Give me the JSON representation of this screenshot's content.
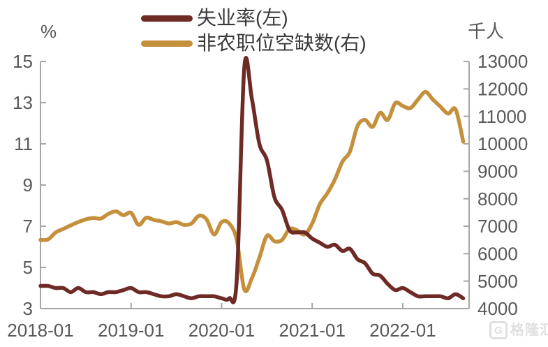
{
  "colors": {
    "background": "#FFFFFF",
    "axis_line": "#A6A6A6",
    "tick_label": "#595959",
    "legend_text": "#3A3A3A",
    "watermark": "#E0E0E0",
    "unemployment_line": "#6E2A25",
    "openings_line": "#C5903C"
  },
  "watermark": {
    "logo": "G",
    "text": "格隆汇"
  },
  "chart_data": {
    "type": "line",
    "title": "",
    "grid": false,
    "legend_position": "top-center",
    "x_start": "2018-01",
    "x_frequency": "monthly",
    "x_tick_labels": [
      "2018-01",
      "2019-01",
      "2020-01",
      "2021-01",
      "2022-01"
    ],
    "x_tick_indices": [
      0,
      12,
      24,
      36,
      48
    ],
    "left_axis": {
      "unit": "%",
      "min": 3,
      "max": 15,
      "step": 2,
      "tick_labels": [
        "3",
        "5",
        "7",
        "9",
        "11",
        "13",
        "15"
      ]
    },
    "right_axis": {
      "unit": "千人",
      "min": 4000,
      "max": 13000,
      "step": 1000,
      "tick_labels": [
        "4000",
        "5000",
        "6000",
        "7000",
        "8000",
        "9000",
        "10000",
        "11000",
        "12000",
        "13000"
      ]
    },
    "series": [
      {
        "name": "失业率(左)",
        "axis": "left",
        "color": "#6E2A25",
        "values": [
          4.1,
          4.1,
          4.0,
          4.0,
          3.8,
          4.0,
          3.8,
          3.8,
          3.7,
          3.8,
          3.8,
          3.9,
          4.0,
          3.8,
          3.8,
          3.7,
          3.6,
          3.6,
          3.7,
          3.6,
          3.5,
          3.6,
          3.6,
          3.6,
          3.5,
          3.5,
          4.4,
          14.7,
          13.2,
          11.0,
          10.2,
          8.4,
          7.8,
          6.8,
          6.7,
          6.7,
          6.4,
          6.2,
          6.0,
          6.1,
          5.8,
          5.9,
          5.4,
          5.2,
          4.7,
          4.6,
          4.2,
          3.9,
          4.0,
          3.8,
          3.6,
          3.6,
          3.6,
          3.6,
          3.5,
          3.7,
          3.5
        ]
      },
      {
        "name": "非农职位空缺数(右)",
        "axis": "right",
        "color": "#C5903C",
        "values": [
          6500,
          6520,
          6770,
          6900,
          7030,
          7150,
          7250,
          7300,
          7280,
          7450,
          7540,
          7400,
          7490,
          7050,
          7310,
          7230,
          7180,
          7100,
          7150,
          7050,
          7100,
          7380,
          7250,
          6700,
          7150,
          7100,
          6500,
          4700,
          5100,
          5850,
          6650,
          6450,
          6500,
          6900,
          6850,
          6700,
          7100,
          7800,
          8200,
          8700,
          9350,
          9720,
          10650,
          10870,
          10620,
          11130,
          10870,
          11480,
          11380,
          11300,
          11610,
          11890,
          11610,
          11350,
          11100,
          11250,
          10080
        ]
      }
    ]
  }
}
